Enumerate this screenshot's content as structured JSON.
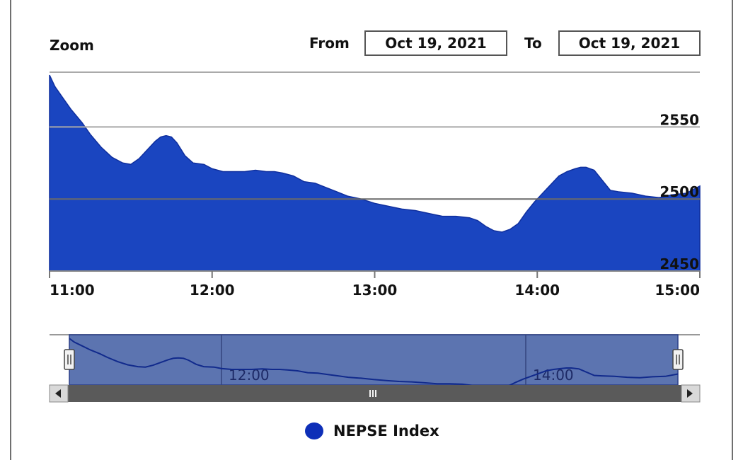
{
  "toolbar": {
    "zoom_label": "Zoom",
    "from_label": "From",
    "from_date": "Oct 19, 2021",
    "to_label": "To",
    "to_date": "Oct 19, 2021"
  },
  "colors": {
    "area_fill": "#1a45c0",
    "navigator_band": "#5c74b0",
    "navigator_line": "#112a8c",
    "legend_marker": "#0e2fb8"
  },
  "chart_data": {
    "type": "area",
    "title": "",
    "xlabel": "",
    "ylabel": "",
    "x_ticks": [
      "11:00",
      "12:00",
      "13:00",
      "14:00",
      "15:00"
    ],
    "y_ticks": [
      2450,
      2500,
      2550
    ],
    "xlim": [
      "11:00",
      "15:00"
    ],
    "ylim": [
      2450,
      2588
    ],
    "grid": true,
    "legend_position": "bottom-center",
    "series": [
      {
        "name": "NEPSE Index",
        "x": [
          "11:00",
          "11:02",
          "11:05",
          "11:08",
          "11:12",
          "11:15",
          "11:19",
          "11:23",
          "11:27",
          "11:30",
          "11:33",
          "11:36",
          "11:39",
          "11:41",
          "11:43",
          "11:45",
          "11:47",
          "11:50",
          "11:53",
          "11:57",
          "12:00",
          "12:04",
          "12:08",
          "12:12",
          "12:16",
          "12:20",
          "12:23",
          "12:26",
          "12:30",
          "12:34",
          "12:38",
          "12:42",
          "12:46",
          "12:50",
          "12:55",
          "13:00",
          "13:05",
          "13:10",
          "13:15",
          "13:20",
          "13:25",
          "13:30",
          "13:35",
          "13:38",
          "13:41",
          "13:44",
          "13:47",
          "13:50",
          "13:53",
          "13:56",
          "13:59",
          "14:02",
          "14:05",
          "14:08",
          "14:11",
          "14:14",
          "14:16",
          "14:18",
          "14:21",
          "14:24",
          "14:27",
          "14:30",
          "14:35",
          "14:40",
          "14:45",
          "14:50",
          "14:55",
          "15:00"
        ],
        "values": [
          2586,
          2578,
          2570,
          2562,
          2553,
          2545,
          2536,
          2529,
          2525,
          2524,
          2528,
          2534,
          2540,
          2543,
          2544,
          2543,
          2539,
          2530,
          2525,
          2524,
          2521,
          2519,
          2519,
          2519,
          2520,
          2519,
          2519,
          2518,
          2516,
          2512,
          2511,
          2508,
          2505,
          2502,
          2500,
          2497,
          2495,
          2493,
          2492,
          2490,
          2488,
          2488,
          2487,
          2485,
          2481,
          2478,
          2477,
          2479,
          2483,
          2491,
          2498,
          2504,
          2510,
          2516,
          2519,
          2521,
          2522,
          2522,
          2520,
          2513,
          2506,
          2505,
          2504,
          2502,
          2501,
          2503,
          2504,
          2509
        ]
      }
    ]
  },
  "navigator": {
    "tick_labels": [
      "12:00",
      "14:00"
    ],
    "range_start": "11:00",
    "range_end": "15:00"
  },
  "legend": {
    "label": "NEPSE Index"
  }
}
